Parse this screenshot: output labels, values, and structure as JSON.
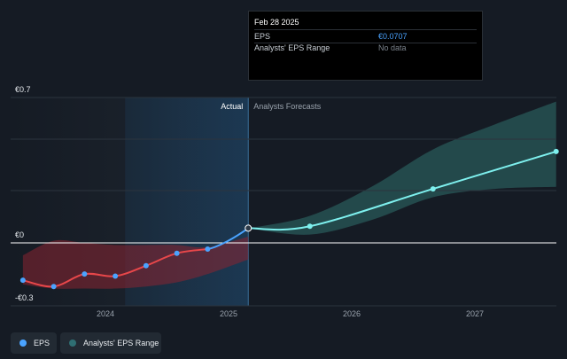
{
  "tooltip": {
    "date": "Feb 28 2025",
    "rows": [
      {
        "label": "EPS",
        "value": "€0.0707"
      },
      {
        "label": "Analysts' EPS Range",
        "value": "No data"
      }
    ]
  },
  "section_labels": {
    "actual": "Actual",
    "forecast": "Analysts Forecasts"
  },
  "legend": [
    {
      "label": "EPS",
      "color": "#4aa3ff"
    },
    {
      "label": "Analysts' EPS Range",
      "color": "#2f6f73"
    }
  ],
  "colors": {
    "eps_actual_negative": "#e8474a",
    "eps_actual_positive": "#4aa3ff",
    "eps_forecast": "#7ef0ee",
    "forecast_band": "#2f6f6b",
    "past_band": "#8a2431",
    "highlight": "#1b3a56"
  },
  "chart_data": {
    "type": "line",
    "y_ticks": [
      {
        "value": 0.7,
        "label": "€0.7"
      },
      {
        "value": 0,
        "label": "€0"
      },
      {
        "value": -0.3,
        "label": "-€0.3"
      }
    ],
    "ylim": [
      -0.3,
      0.7
    ],
    "x_ticks": [
      {
        "value": 2024,
        "label": "2024"
      },
      {
        "value": 2025,
        "label": "2025"
      },
      {
        "value": 2026,
        "label": "2026"
      },
      {
        "value": 2027,
        "label": "2027"
      }
    ],
    "xlim": [
      2023.2,
      2027.65
    ],
    "actual_x_end": 2025.16,
    "highlight_x_start": 2024.16,
    "series": [
      {
        "name": "EPS",
        "points": [
          {
            "x": 2023.33,
            "y": -0.18
          },
          {
            "x": 2023.58,
            "y": -0.21
          },
          {
            "x": 2023.83,
            "y": -0.15
          },
          {
            "x": 2024.08,
            "y": -0.16
          },
          {
            "x": 2024.33,
            "y": -0.11
          },
          {
            "x": 2024.58,
            "y": -0.05
          },
          {
            "x": 2024.83,
            "y": -0.03
          },
          {
            "x": 2025.16,
            "y": 0.0707
          }
        ],
        "forecast_points": [
          {
            "x": 2025.16,
            "y": 0.0707
          },
          {
            "x": 2025.66,
            "y": 0.08
          },
          {
            "x": 2026.66,
            "y": 0.26
          },
          {
            "x": 2027.66,
            "y": 0.44
          }
        ]
      }
    ],
    "past_range": {
      "x": [
        2023.33,
        2023.58,
        2023.83,
        2024.08,
        2024.33,
        2024.58,
        2024.83,
        2025.16
      ],
      "upper": [
        -0.06,
        0.01,
        0.0,
        -0.01,
        -0.01,
        -0.01,
        -0.02,
        0.03
      ],
      "lower": [
        -0.2,
        -0.22,
        -0.22,
        -0.22,
        -0.21,
        -0.19,
        -0.15,
        -0.08
      ]
    },
    "forecast_range": {
      "x": [
        2025.16,
        2025.66,
        2026.16,
        2026.66,
        2027.16,
        2027.66
      ],
      "upper": [
        0.07,
        0.13,
        0.27,
        0.45,
        0.57,
        0.68
      ],
      "lower": [
        0.07,
        0.04,
        0.11,
        0.22,
        0.26,
        0.27
      ]
    }
  }
}
